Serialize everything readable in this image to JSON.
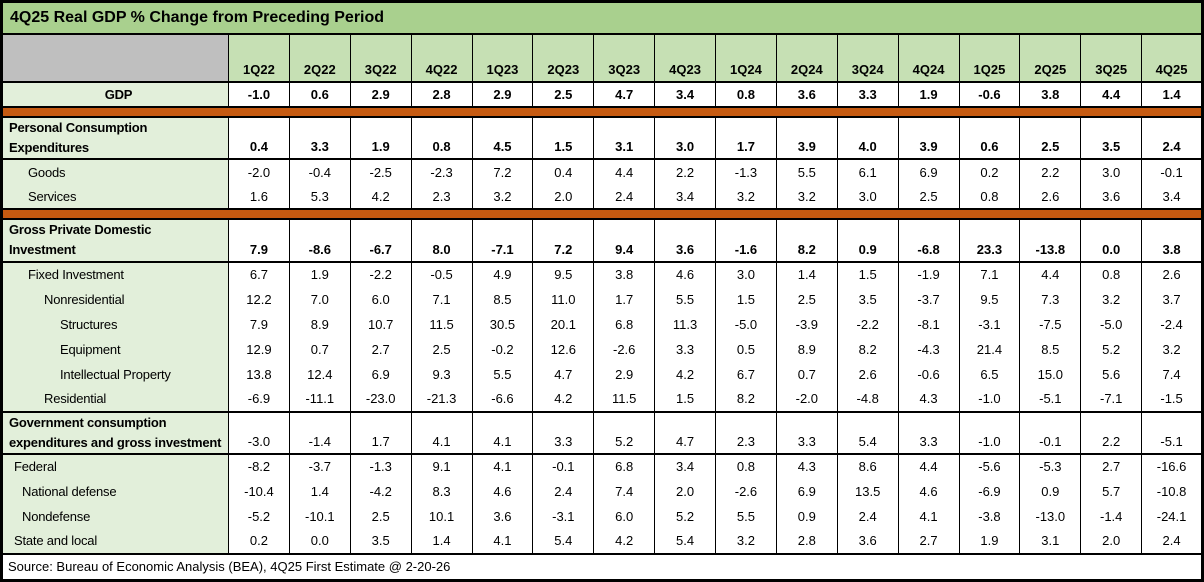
{
  "title": "4Q25 Real GDP % Change from Preceding Period",
  "source": "Source: Bureau of Economic Analysis (BEA), 4Q25 First Estimate @ 2-20-26",
  "colors": {
    "title_bg": "#A9D08E",
    "header_bg": "#C6E0B4",
    "corner_bg": "#BFBFBF",
    "label_bg": "#E2EFDA",
    "divider": "#C55A11",
    "border": "#000000",
    "data_bg": "#FFFFFF"
  },
  "chart_data": {
    "type": "table",
    "title": "4Q25 Real GDP % Change from Preceding Period",
    "unit": "% change from preceding period",
    "columns": [
      "1Q22",
      "2Q22",
      "3Q22",
      "4Q22",
      "1Q23",
      "2Q23",
      "3Q23",
      "4Q23",
      "1Q24",
      "2Q24",
      "3Q24",
      "4Q24",
      "1Q25",
      "2Q25",
      "3Q25",
      "4Q25"
    ],
    "rows": [
      {
        "label": "GDP",
        "row_style": "gdp",
        "indent": 0,
        "values": [
          -1.0,
          0.6,
          2.9,
          2.8,
          2.9,
          2.5,
          4.7,
          3.4,
          0.8,
          3.6,
          3.3,
          1.9,
          -0.6,
          3.8,
          4.4,
          1.4
        ]
      },
      {
        "row_style": "divider"
      },
      {
        "label": "Personal Consumption Expenditures",
        "label_lines": [
          "Personal Consumption",
          "Expenditures"
        ],
        "row_style": "section",
        "bold_values": true,
        "indent": 0,
        "values": [
          0.4,
          3.3,
          1.9,
          0.8,
          4.5,
          1.5,
          3.1,
          3.0,
          1.7,
          3.9,
          4.0,
          3.9,
          0.6,
          2.5,
          3.5,
          2.4
        ]
      },
      {
        "label": "Goods",
        "row_style": "sub",
        "indent": 3,
        "values": [
          -2.0,
          -0.4,
          -2.5,
          -2.3,
          7.2,
          0.4,
          4.4,
          2.2,
          -1.3,
          5.5,
          6.1,
          6.9,
          0.2,
          2.2,
          3.0,
          -0.1
        ]
      },
      {
        "label": "Services",
        "row_style": "sub",
        "indent": 3,
        "values": [
          1.6,
          5.3,
          4.2,
          2.3,
          3.2,
          2.0,
          2.4,
          3.4,
          3.2,
          3.2,
          3.0,
          2.5,
          0.8,
          2.6,
          3.6,
          3.4
        ]
      },
      {
        "row_style": "divider"
      },
      {
        "label": "Gross Private Domestic Investment",
        "label_lines": [
          "Gross Private Domestic",
          "Investment"
        ],
        "row_style": "section",
        "bold_values": true,
        "indent": 0,
        "values": [
          7.9,
          -8.6,
          -6.7,
          8.0,
          -7.1,
          7.2,
          9.4,
          3.6,
          -1.6,
          8.2,
          0.9,
          -6.8,
          23.3,
          -13.8,
          0.0,
          3.8
        ]
      },
      {
        "label": "Fixed Investment",
        "row_style": "sub",
        "indent": 3,
        "values": [
          6.7,
          1.9,
          -2.2,
          -0.5,
          4.9,
          9.5,
          3.8,
          4.6,
          3.0,
          1.4,
          1.5,
          -1.9,
          7.1,
          4.4,
          0.8,
          2.6
        ]
      },
      {
        "label": "Nonresidential",
        "row_style": "sub",
        "indent": 4,
        "values": [
          12.2,
          7.0,
          6.0,
          7.1,
          8.5,
          11.0,
          1.7,
          5.5,
          1.5,
          2.5,
          3.5,
          -3.7,
          9.5,
          7.3,
          3.2,
          3.7
        ]
      },
      {
        "label": "Structures",
        "row_style": "sub",
        "indent": 5,
        "values": [
          7.9,
          8.9,
          10.7,
          11.5,
          30.5,
          20.1,
          6.8,
          11.3,
          -5.0,
          -3.9,
          -2.2,
          -8.1,
          -3.1,
          -7.5,
          -5.0,
          -2.4
        ]
      },
      {
        "label": "Equipment",
        "row_style": "sub",
        "indent": 5,
        "values": [
          12.9,
          0.7,
          2.7,
          2.5,
          -0.2,
          12.6,
          -2.6,
          3.3,
          0.5,
          8.9,
          8.2,
          -4.3,
          21.4,
          8.5,
          5.2,
          3.2
        ]
      },
      {
        "label": "Intellectual Property",
        "row_style": "sub",
        "indent": 5,
        "values": [
          13.8,
          12.4,
          6.9,
          9.3,
          5.5,
          4.7,
          2.9,
          4.2,
          6.7,
          0.7,
          2.6,
          -0.6,
          6.5,
          15.0,
          5.6,
          7.4
        ]
      },
      {
        "label": "Residential",
        "row_style": "sub",
        "indent": 4,
        "values": [
          -6.9,
          -11.1,
          -23.0,
          -21.3,
          -6.6,
          4.2,
          11.5,
          1.5,
          8.2,
          -2.0,
          -4.8,
          4.3,
          -1.0,
          -5.1,
          -7.1,
          -1.5
        ]
      },
      {
        "label": "Government consumption expenditures and gross investment",
        "label_lines": [
          "Government consumption",
          "expenditures and gross investment"
        ],
        "row_style": "section",
        "bold_values": false,
        "indent": 0,
        "values": [
          -3.0,
          -1.4,
          1.7,
          4.1,
          4.1,
          3.3,
          5.2,
          4.7,
          2.3,
          3.3,
          5.4,
          3.3,
          -1.0,
          -0.1,
          2.2,
          -5.1
        ]
      },
      {
        "label": "Federal",
        "row_style": "sub",
        "indent": 1,
        "values": [
          -8.2,
          -3.7,
          -1.3,
          9.1,
          4.1,
          -0.1,
          6.8,
          3.4,
          0.8,
          4.3,
          8.6,
          4.4,
          -5.6,
          -5.3,
          2.7,
          -16.6
        ]
      },
      {
        "label": "National defense",
        "row_style": "sub",
        "indent": 2,
        "values": [
          -10.4,
          1.4,
          -4.2,
          8.3,
          4.6,
          2.4,
          7.4,
          2.0,
          -2.6,
          6.9,
          13.5,
          4.6,
          -6.9,
          0.9,
          5.7,
          -10.8
        ]
      },
      {
        "label": "Nondefense",
        "row_style": "sub",
        "indent": 2,
        "values": [
          -5.2,
          -10.1,
          2.5,
          10.1,
          3.6,
          -3.1,
          6.0,
          5.2,
          5.5,
          0.9,
          2.4,
          4.1,
          -3.8,
          -13.0,
          -1.4,
          -24.1
        ]
      },
      {
        "label": "State and local",
        "row_style": "sub",
        "indent": 1,
        "values": [
          0.2,
          0.0,
          3.5,
          1.4,
          4.1,
          5.4,
          4.2,
          5.4,
          3.2,
          2.8,
          3.6,
          2.7,
          1.9,
          3.1,
          2.0,
          2.4
        ]
      }
    ]
  }
}
